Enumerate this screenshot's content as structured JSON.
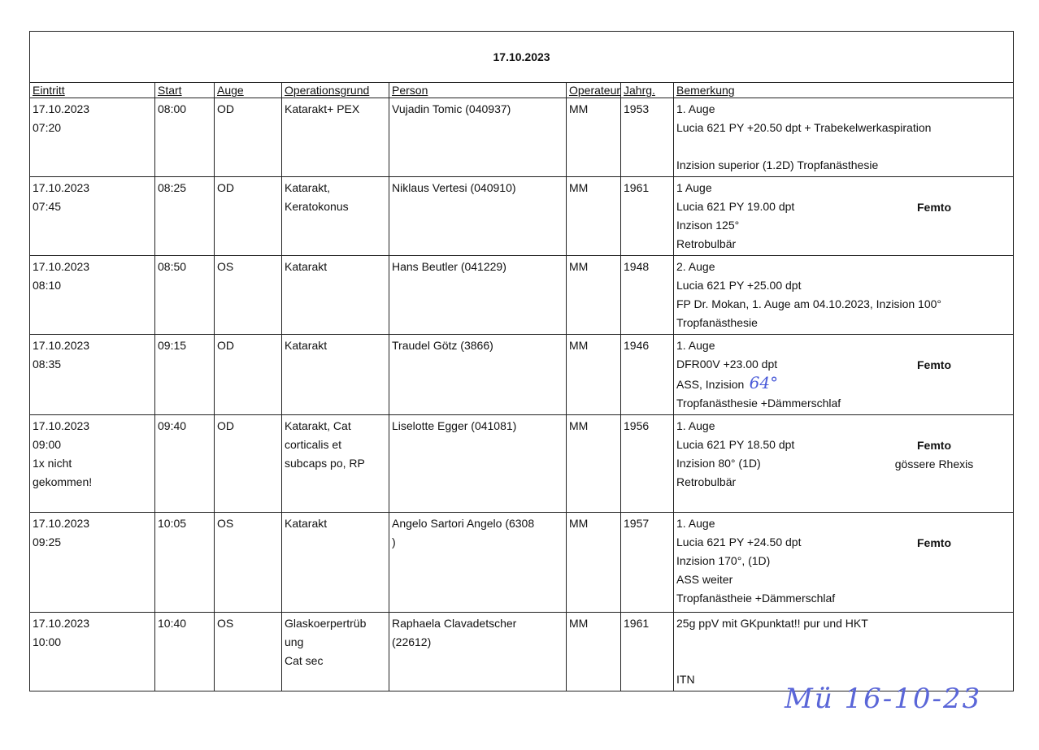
{
  "title": "17.10.2023",
  "headers": [
    "Eintritt",
    "Start",
    "Auge",
    "Operationsgrund",
    "Person",
    "Operateur",
    "Jahrg.",
    "Bemerkung"
  ],
  "rows": [
    {
      "eintritt": [
        "17.10.2023",
        "07:20"
      ],
      "start": "08:00",
      "auge": "OD",
      "grund": [
        "Katarakt+ PEX"
      ],
      "person": [
        "Vujadin Tomic (040937)"
      ],
      "operateur": "MM",
      "jahrg": "1953",
      "bemerkung": [
        "1. Auge",
        "Lucia 621 PY +20.50 dpt + Trabekelwerkaspiration",
        "",
        "Inzision superior (1.2D) Tropfanästhesie"
      ],
      "side": []
    },
    {
      "eintritt": [
        "17.10.2023",
        "07:45"
      ],
      "start": "08:25",
      "auge": "OD",
      "grund": [
        "Katarakt,",
        "Keratokonus"
      ],
      "person": [
        "Niklaus Vertesi (040910)"
      ],
      "operateur": "MM",
      "jahrg": "1961",
      "bemerkung": [
        "1 Auge",
        "Lucia 621 PY 19.00 dpt",
        "Inzison 125°",
        "Retrobulbär"
      ],
      "side": [
        "Femto"
      ]
    },
    {
      "eintritt": [
        "17.10.2023",
        "08:10"
      ],
      "start": "08:50",
      "auge": "OS",
      "grund": [
        "Katarakt"
      ],
      "person": [
        "Hans Beutler (041229)"
      ],
      "operateur": "MM",
      "jahrg": "1948",
      "bemerkung": [
        "2. Auge",
        "Lucia 621 PY +25.00 dpt",
        "FP Dr. Mokan, 1. Auge am 04.10.2023, Inzision 100°",
        "Tropfanästhesie"
      ],
      "side": []
    },
    {
      "eintritt": [
        "17.10.2023",
        "08:35"
      ],
      "start": "09:15",
      "auge": "OD",
      "grund": [
        "Katarakt"
      ],
      "person": [
        "Traudel Götz (3866)"
      ],
      "operateur": "MM",
      "jahrg": "1946",
      "bemerkung": [
        "1. Auge",
        "DFR00V +23.00 dpt",
        "ASS, Inzision",
        "Tropfanästhesie +Dämmerschlaf"
      ],
      "handwritten": "64°",
      "side": [
        "Femto"
      ]
    },
    {
      "eintritt": [
        "17.10.2023",
        "09:00",
        "1x nicht",
        "gekommen!"
      ],
      "start": "09:40",
      "auge": "OD",
      "grund": [
        "Katarakt, Cat",
        "corticalis et",
        "subcaps po, RP"
      ],
      "person": [
        "Liselotte Egger (041081)"
      ],
      "operateur": "MM",
      "jahrg": "1956",
      "bemerkung": [
        "1. Auge",
        "Lucia 621 PY  18.50 dpt",
        "Inzision 80° (1D)",
        "Retrobulbär"
      ],
      "side": [
        "Femto",
        "gössere Rhexis"
      ]
    },
    {
      "eintritt": [
        "17.10.2023",
        "09:25"
      ],
      "start": "10:05",
      "auge": "OS",
      "grund": [
        "Katarakt"
      ],
      "person": [
        "Angelo Sartori Angelo  (6308",
        ")"
      ],
      "operateur": "MM",
      "jahrg": "1957",
      "bemerkung": [
        "1. Auge",
        "Lucia 621 PY +24.50 dpt",
        "Inzision 170°, (1D)",
        "ASS weiter",
        "Tropfanästheie +Dämmerschlaf"
      ],
      "side": [
        "Femto"
      ]
    },
    {
      "eintritt": [
        "17.10.2023",
        "10:00"
      ],
      "start": "10:40",
      "auge": "OS",
      "grund": [
        "Glaskoerpertrüb",
        "ung",
        "Cat sec"
      ],
      "person": [
        "Raphaela Clavadetscher",
        "(22612)"
      ],
      "operateur": "MM",
      "jahrg": "1961",
      "bemerkung": [
        "25g ppV  mit GKpunktat!! pur und  HKT",
        "",
        "",
        "ITN"
      ],
      "side": []
    }
  ],
  "signature": "Mü 16-10-23"
}
